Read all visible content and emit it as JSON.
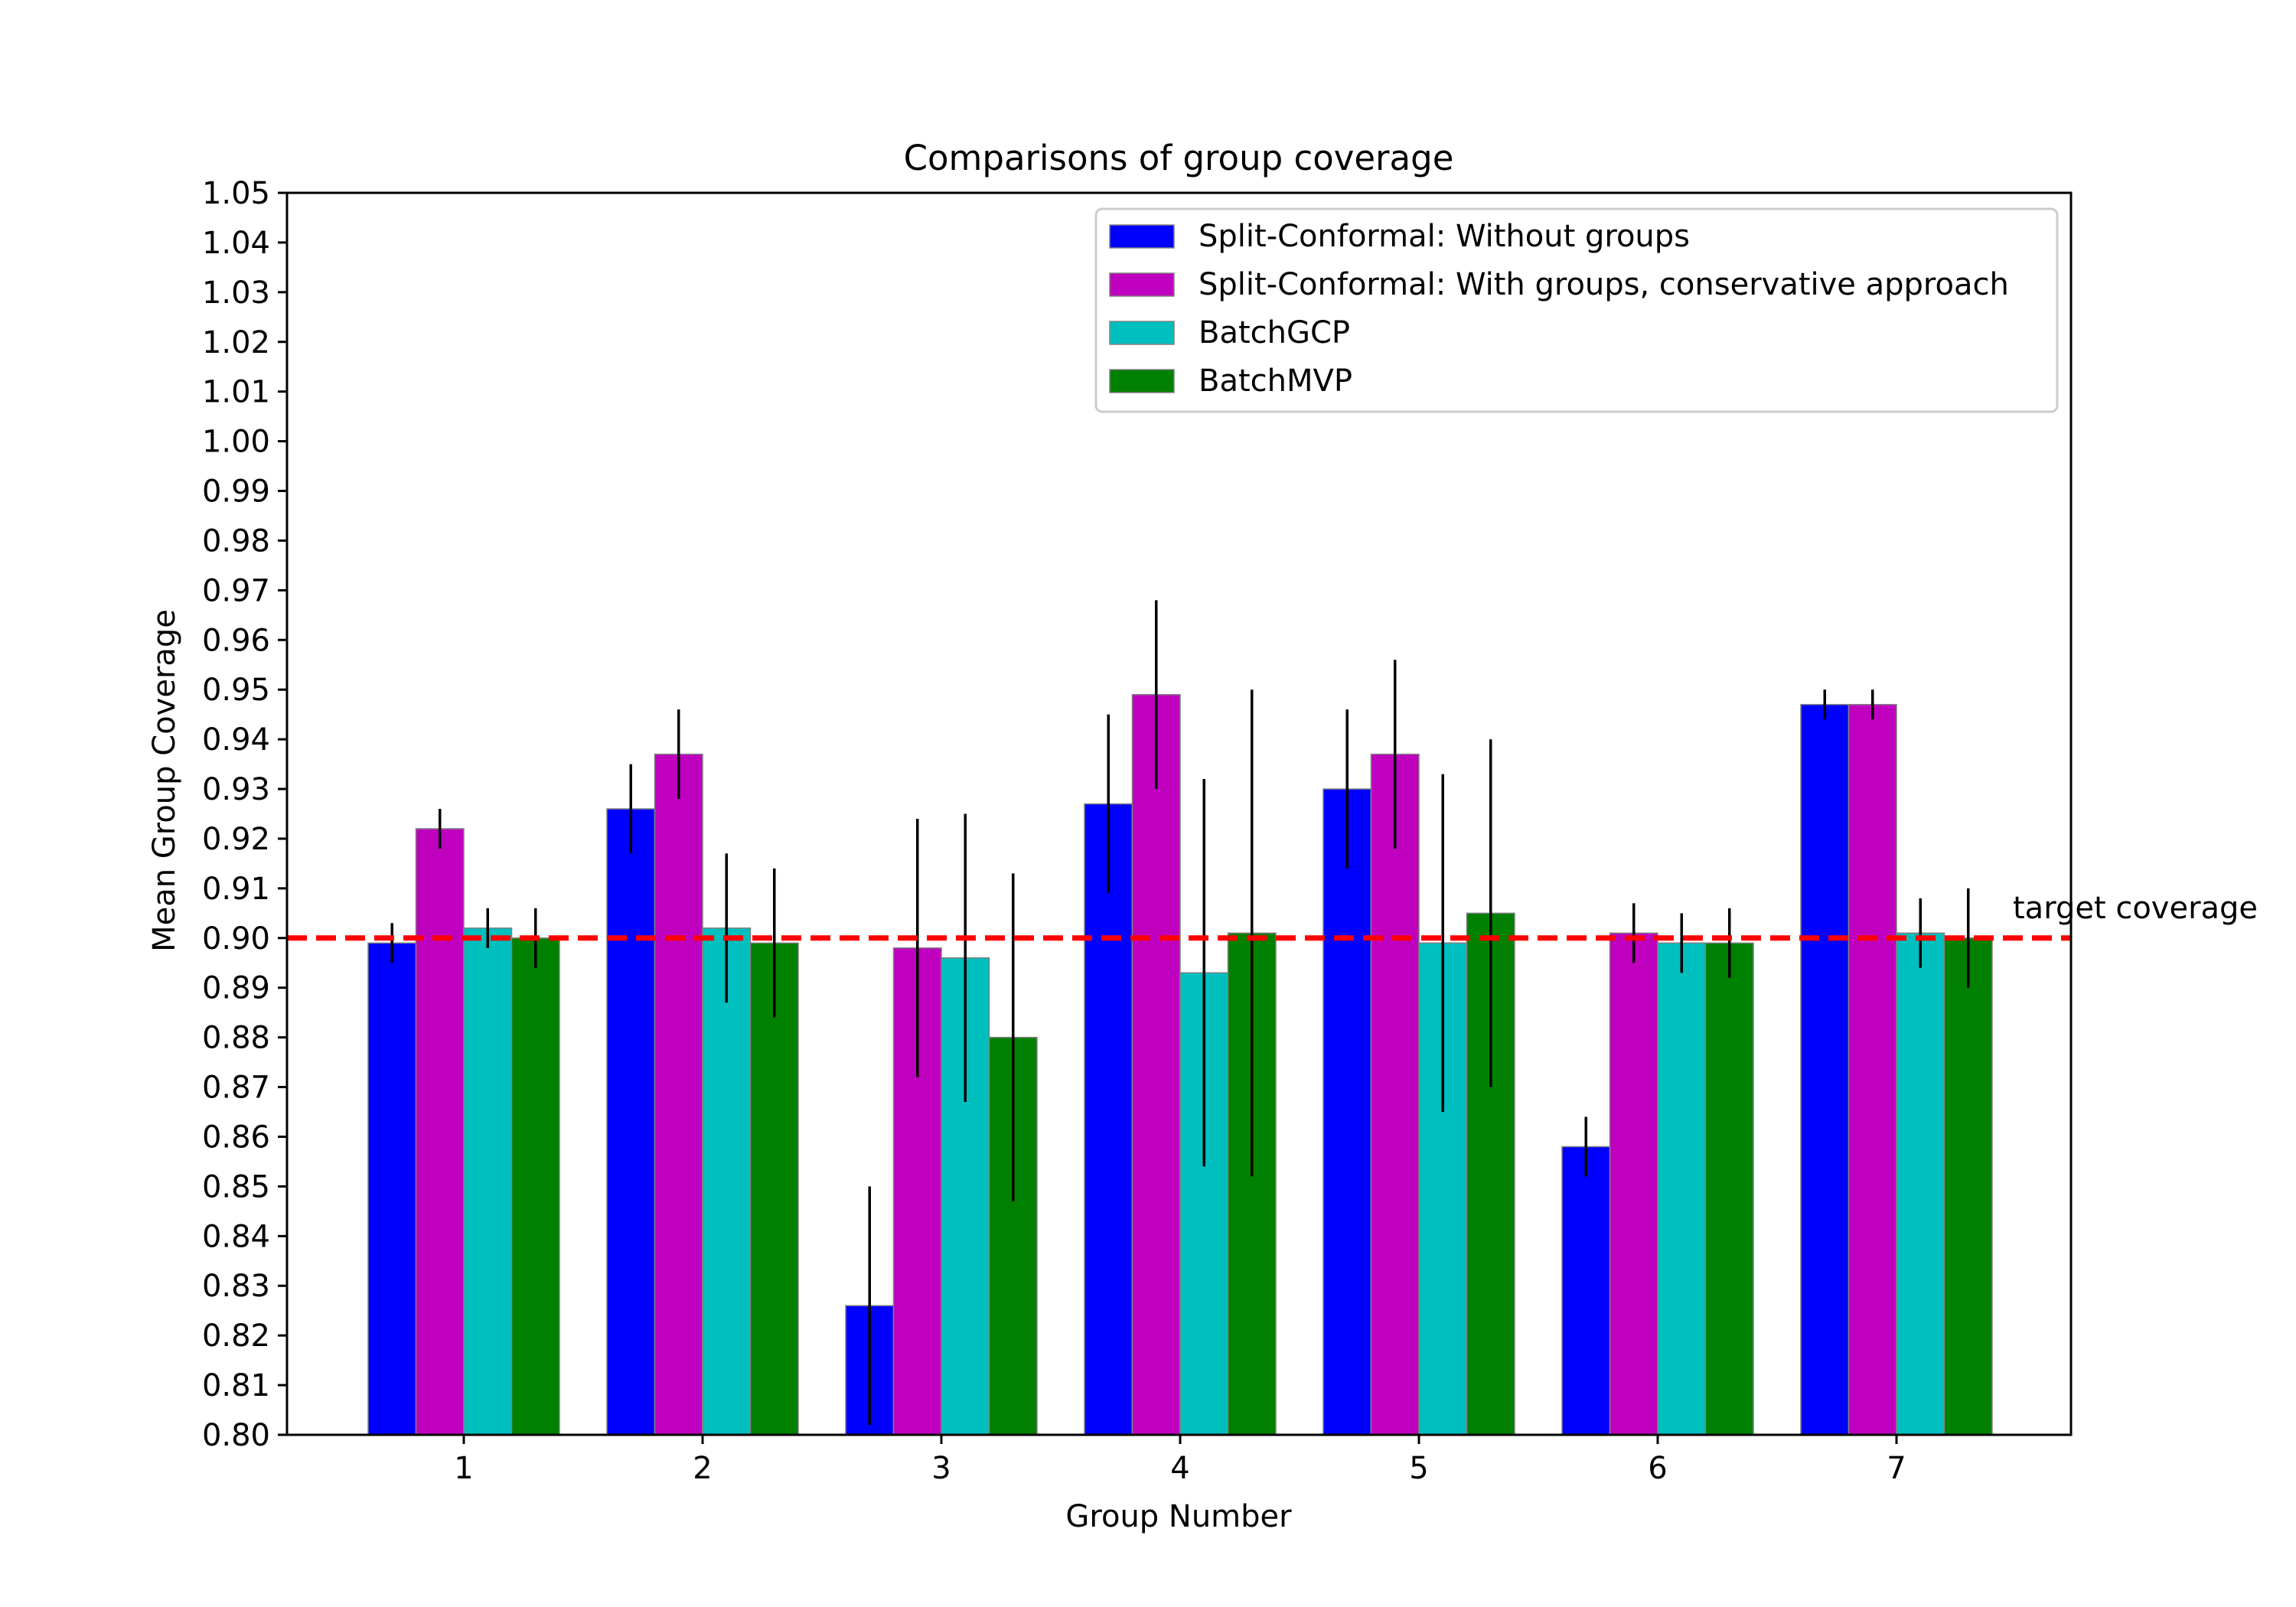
{
  "chart_data": {
    "type": "bar",
    "title": "Comparisons of group coverage",
    "xlabel": "Group Number",
    "ylabel": "Mean Group Coverage",
    "ylim": [
      0.8,
      1.05
    ],
    "yticks": [
      "0.80",
      "0.81",
      "0.82",
      "0.83",
      "0.84",
      "0.85",
      "0.86",
      "0.87",
      "0.88",
      "0.89",
      "0.90",
      "0.91",
      "0.92",
      "0.93",
      "0.94",
      "0.95",
      "0.96",
      "0.97",
      "0.98",
      "0.99",
      "1.00",
      "1.01",
      "1.02",
      "1.03",
      "1.04",
      "1.05"
    ],
    "categories": [
      "1",
      "2",
      "3",
      "4",
      "5",
      "6",
      "7"
    ],
    "series": [
      {
        "name": "Split-Conformal: Without groups",
        "color": "#0000ff",
        "values": [
          0.899,
          0.926,
          0.826,
          0.927,
          0.93,
          0.858,
          0.947
        ],
        "errors": [
          0.004,
          0.009,
          0.024,
          0.018,
          0.016,
          0.006,
          0.003
        ]
      },
      {
        "name": "Split-Conformal: With groups, conservative approach",
        "color": "#bf00bf",
        "values": [
          0.922,
          0.937,
          0.898,
          0.949,
          0.937,
          0.901,
          0.947
        ],
        "errors": [
          0.004,
          0.009,
          0.026,
          0.019,
          0.019,
          0.006,
          0.003
        ]
      },
      {
        "name": "BatchGCP",
        "color": "#00bfbf",
        "values": [
          0.902,
          0.902,
          0.896,
          0.893,
          0.899,
          0.899,
          0.901
        ],
        "errors": [
          0.004,
          0.015,
          0.029,
          0.039,
          0.034,
          0.006,
          0.007
        ]
      },
      {
        "name": "BatchMVP",
        "color": "#008000",
        "values": [
          0.9,
          0.899,
          0.88,
          0.901,
          0.905,
          0.899,
          0.9
        ],
        "errors": [
          0.006,
          0.015,
          0.033,
          0.049,
          0.035,
          0.007,
          0.01
        ]
      }
    ],
    "reference_line": {
      "value": 0.9,
      "label": "target coverage",
      "color": "#ff0000"
    },
    "legend_position": "top-right"
  }
}
